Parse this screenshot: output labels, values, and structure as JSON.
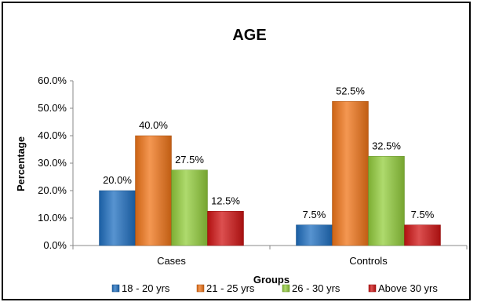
{
  "chart_data": {
    "type": "bar",
    "title": "AGE",
    "xlabel": "Groups",
    "ylabel": "Percentage",
    "categories": [
      "Cases",
      "Controls"
    ],
    "ylim": [
      0,
      60
    ],
    "yticks": [
      "0.0%",
      "10.0%",
      "20.0%",
      "30.0%",
      "40.0%",
      "50.0%",
      "60.0%"
    ],
    "grid": false,
    "legend_position": "bottom",
    "series": [
      {
        "name": "18 - 20 yrs",
        "color": "#1f6fc0",
        "values": [
          20.0,
          7.5
        ],
        "labels": [
          "20.0%",
          "7.5%"
        ]
      },
      {
        "name": "21 - 25 yrs",
        "color": "#f07418",
        "values": [
          40.0,
          52.5
        ],
        "labels": [
          "40.0%",
          "52.5%"
        ]
      },
      {
        "name": "26 - 30 yrs",
        "color": "#93cd3c",
        "values": [
          27.5,
          32.5
        ],
        "labels": [
          "27.5%",
          "32.5%"
        ]
      },
      {
        "name": "Above 30 yrs",
        "color": "#d01414",
        "values": [
          12.5,
          7.5
        ],
        "labels": [
          "12.5%",
          "7.5%"
        ]
      }
    ]
  }
}
